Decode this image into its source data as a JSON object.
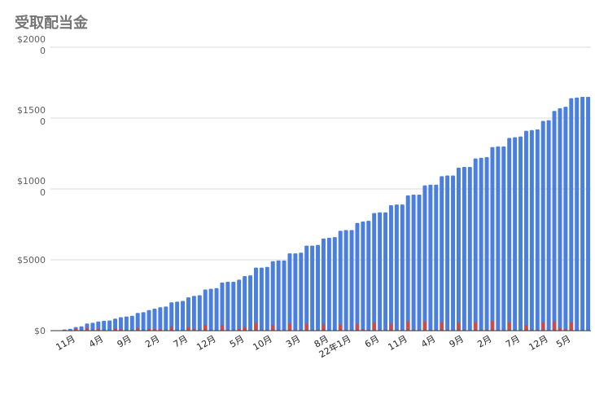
{
  "title": "受取配当金",
  "colors": {
    "cumulative": "#4a7fe0",
    "monthly": "#e2452f",
    "grid": "#d9d9d9",
    "axis": "#333333",
    "title": "#757575"
  },
  "chart_data": {
    "type": "bar",
    "title": "受取配当金",
    "xlabel": "",
    "ylabel": "",
    "ylim": [
      0,
      20000
    ],
    "y_ticks": [
      0,
      5000,
      10000,
      15000,
      20000
    ],
    "y_tick_labels": [
      "$0",
      "$5000",
      "$1000\n0",
      "$1500\n0",
      "$2000\n0"
    ],
    "grid": true,
    "legend": "none",
    "x_tick_labels": [
      {
        "index": 4,
        "label": "11月"
      },
      {
        "index": 9,
        "label": "4月"
      },
      {
        "index": 14,
        "label": "9月"
      },
      {
        "index": 19,
        "label": "2月"
      },
      {
        "index": 24,
        "label": "7月"
      },
      {
        "index": 29,
        "label": "12月"
      },
      {
        "index": 34,
        "label": "5月"
      },
      {
        "index": 39,
        "label": "10月"
      },
      {
        "index": 44,
        "label": "3月"
      },
      {
        "index": 49,
        "label": "8月"
      },
      {
        "index": 53,
        "label": "22年1月"
      },
      {
        "index": 58,
        "label": "6月"
      },
      {
        "index": 63,
        "label": "11月"
      },
      {
        "index": 68,
        "label": "4月"
      },
      {
        "index": 73,
        "label": "9月"
      },
      {
        "index": 78,
        "label": "2月"
      },
      {
        "index": 83,
        "label": "7月"
      },
      {
        "index": 88,
        "label": "12月"
      },
      {
        "index": 92,
        "label": "5月"
      }
    ],
    "series": [
      {
        "key": "cumulative",
        "values": [
          10,
          30,
          80,
          130,
          250,
          300,
          500,
          550,
          650,
          700,
          720,
          850,
          950,
          1000,
          1050,
          1250,
          1300,
          1450,
          1550,
          1650,
          1700,
          2000,
          2050,
          2100,
          2350,
          2450,
          2500,
          2900,
          2950,
          3000,
          3400,
          3450,
          3450,
          3600,
          3850,
          3900,
          4450,
          4450,
          4500,
          4900,
          4950,
          4950,
          5450,
          5450,
          5500,
          6000,
          6000,
          6050,
          6500,
          6550,
          6600,
          7050,
          7100,
          7100,
          7600,
          7700,
          7750,
          8300,
          8350,
          8350,
          8850,
          8900,
          8900,
          9550,
          9600,
          9600,
          10250,
          10300,
          10300,
          10900,
          10950,
          10950,
          11500,
          11550,
          11550,
          12150,
          12200,
          12250,
          12950,
          13000,
          13000,
          13600,
          13650,
          13700,
          14100,
          14150,
          14200,
          14800,
          14850,
          15500,
          15700,
          15800,
          16400,
          16450,
          16500,
          16500
        ]
      },
      {
        "key": "monthly",
        "values": [
          10,
          20,
          50,
          50,
          120,
          50,
          200,
          50,
          100,
          50,
          20,
          130,
          100,
          50,
          50,
          200,
          50,
          150,
          100,
          100,
          50,
          300,
          50,
          50,
          250,
          100,
          50,
          400,
          50,
          50,
          400,
          50,
          0,
          150,
          250,
          50,
          550,
          0,
          50,
          400,
          50,
          0,
          500,
          0,
          50,
          500,
          0,
          50,
          450,
          50,
          50,
          450,
          50,
          0,
          500,
          100,
          50,
          550,
          50,
          0,
          500,
          50,
          0,
          650,
          50,
          0,
          650,
          50,
          0,
          600,
          50,
          0,
          550,
          50,
          0,
          600,
          50,
          50,
          700,
          50,
          0,
          600,
          50,
          50,
          400,
          50,
          50,
          600,
          50,
          650,
          200,
          100,
          600,
          50,
          50,
          0
        ]
      }
    ]
  }
}
